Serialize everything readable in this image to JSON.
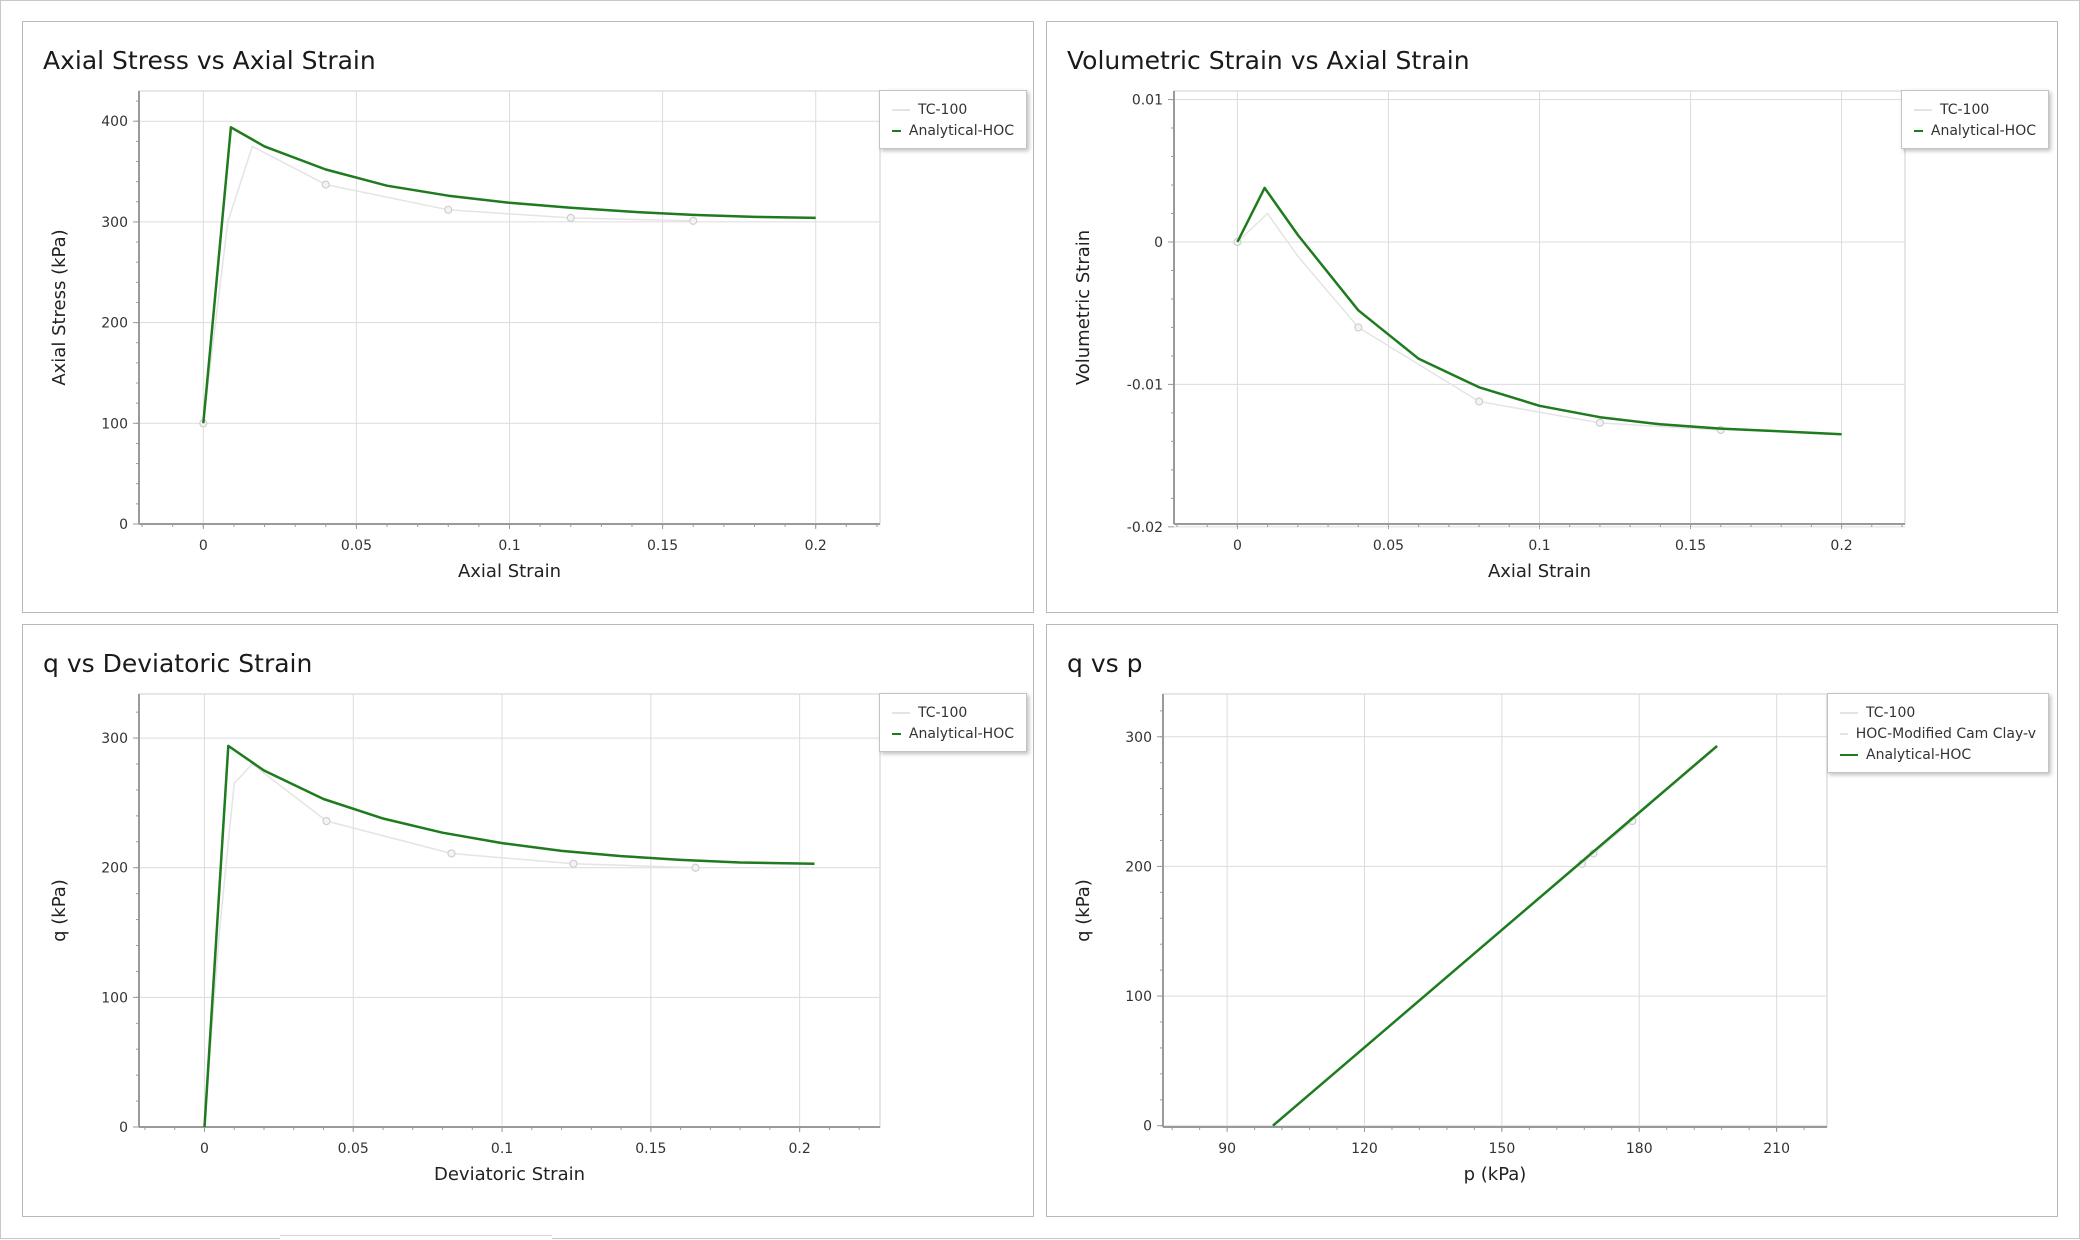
{
  "colors": {
    "analytical": "#1e7b1e",
    "experimental": "#e4e4e4",
    "marker": "#cfcfcf",
    "grid": "#dcdcdc",
    "axis": "#9a9a9a"
  },
  "chart_data": [
    {
      "type": "line",
      "title": "Axial Stress vs Axial Strain",
      "xlabel": "Axial Strain",
      "ylabel": "Axial Stress (kPa)",
      "xlim": [
        -0.021,
        0.221
      ],
      "ylim": [
        0,
        430
      ],
      "xticks": [
        0,
        0.05,
        0.1,
        0.15,
        0.2
      ],
      "xtick_labels": [
        "0",
        "0.05",
        "0.1",
        "0.15",
        "0.2"
      ],
      "yticks": [
        0,
        100,
        200,
        300,
        400
      ],
      "ytick_labels": [
        "0",
        "100",
        "200",
        "300",
        "400"
      ],
      "legend_position": "top-right",
      "series": [
        {
          "name": "TC-100",
          "style": "experimental",
          "x": [
            0,
            0.008,
            0.016,
            0.04,
            0.08,
            0.12,
            0.16
          ],
          "y": [
            100,
            300,
            375,
            337,
            312,
            304,
            301
          ],
          "markers": [
            0,
            3,
            4,
            5,
            6
          ]
        },
        {
          "name": "Analytical-HOC",
          "style": "analytical",
          "x": [
            0,
            0.009,
            0.02,
            0.04,
            0.06,
            0.08,
            0.1,
            0.12,
            0.14,
            0.16,
            0.18,
            0.2
          ],
          "y": [
            100,
            394,
            375,
            352,
            336,
            326,
            319,
            314,
            310,
            307,
            305,
            304
          ]
        }
      ]
    },
    {
      "type": "line",
      "title": "Volumetric Strain vs Axial Strain",
      "xlabel": "Axial Strain",
      "ylabel": "Volumetric Strain",
      "xlim": [
        -0.021,
        0.221
      ],
      "ylim": [
        -0.0198,
        0.0106
      ],
      "xticks": [
        0,
        0.05,
        0.1,
        0.15,
        0.2
      ],
      "xtick_labels": [
        "0",
        "0.05",
        "0.1",
        "0.15",
        "0.2"
      ],
      "yticks": [
        0.01,
        0,
        -0.01,
        -0.02
      ],
      "ytick_labels": [
        "0.01",
        "0",
        "-0.01",
        "-0.02"
      ],
      "legend_position": "top-right",
      "series": [
        {
          "name": "TC-100",
          "style": "experimental",
          "x": [
            0,
            0.01,
            0.02,
            0.04,
            0.08,
            0.12,
            0.16
          ],
          "y": [
            0,
            0.002,
            -0.001,
            -0.006,
            -0.0112,
            -0.0127,
            -0.0132
          ],
          "markers": [
            0,
            3,
            4,
            5,
            6
          ]
        },
        {
          "name": "Analytical-HOC",
          "style": "analytical",
          "x": [
            0,
            0.009,
            0.02,
            0.04,
            0.06,
            0.08,
            0.1,
            0.12,
            0.14,
            0.16,
            0.18,
            0.2
          ],
          "y": [
            0,
            0.0038,
            0.0005,
            -0.0048,
            -0.0082,
            -0.0102,
            -0.0115,
            -0.0123,
            -0.0128,
            -0.0131,
            -0.0133,
            -0.0135
          ]
        }
      ]
    },
    {
      "type": "line",
      "title": "q vs Deviatoric Strain",
      "xlabel": "Deviatoric Strain",
      "ylabel": "q (kPa)",
      "xlim": [
        -0.022,
        0.227
      ],
      "ylim": [
        0,
        334
      ],
      "xticks": [
        0,
        0.05,
        0.1,
        0.15,
        0.2
      ],
      "xtick_labels": [
        "0",
        "0.05",
        "0.1",
        "0.15",
        "0.2"
      ],
      "yticks": [
        0,
        100,
        200,
        300
      ],
      "ytick_labels": [
        "0",
        "100",
        "200",
        "300"
      ],
      "legend_position": "top-right",
      "series": [
        {
          "name": "TC-100",
          "style": "experimental",
          "x": [
            0,
            0.005,
            0.01,
            0.016,
            0.041,
            0.083,
            0.124,
            0.165
          ],
          "y": [
            0,
            150,
            265,
            280,
            236,
            211,
            203,
            200
          ],
          "markers": [
            4,
            5,
            6,
            7
          ]
        },
        {
          "name": "Analytical-HOC",
          "style": "analytical",
          "x": [
            0,
            0.008,
            0.02,
            0.04,
            0.06,
            0.08,
            0.1,
            0.12,
            0.14,
            0.16,
            0.18,
            0.205
          ],
          "y": [
            0,
            294,
            275,
            253,
            238,
            227,
            219,
            213,
            209,
            206,
            204,
            203
          ]
        }
      ]
    },
    {
      "type": "line",
      "title": "q vs p",
      "xlabel": "p (kPa)",
      "ylabel": "q (kPa)",
      "xlim": [
        76,
        221
      ],
      "ylim": [
        -1,
        333
      ],
      "xticks": [
        90,
        120,
        150,
        180,
        210
      ],
      "xtick_labels": [
        "90",
        "120",
        "150",
        "180",
        "210"
      ],
      "yticks": [
        0,
        100,
        200,
        300
      ],
      "ytick_labels": [
        "0",
        "100",
        "200",
        "300"
      ],
      "legend_position": "top-right",
      "series": [
        {
          "name": "TC-100",
          "style": "experimental",
          "x": [
            167.5,
            170,
            178.5
          ],
          "y": [
            202,
            210,
            235
          ],
          "markers": [
            0,
            1,
            2
          ]
        },
        {
          "name": "HOC-Modified Cam Clay-v",
          "style": "experimental",
          "x": [
            100,
            197
          ],
          "y": [
            0,
            292
          ]
        },
        {
          "name": "Analytical-HOC",
          "style": "analytical",
          "x": [
            100,
            197
          ],
          "y": [
            0,
            293
          ]
        }
      ]
    }
  ]
}
